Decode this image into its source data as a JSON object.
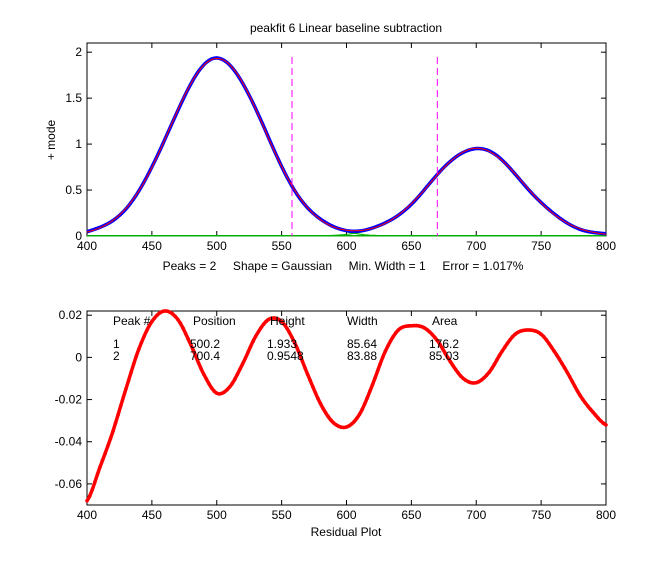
{
  "chart_data": [
    {
      "type": "line",
      "title": "peakfit 6   Linear baseline subtraction",
      "xlabel": "",
      "ylabel": "+ mode",
      "xlim": [
        400,
        800
      ],
      "ylim": [
        0,
        2.1
      ],
      "xticks": [
        "400",
        "450",
        "500",
        "550",
        "600",
        "650",
        "700",
        "750",
        "800"
      ],
      "yticks": [
        "0",
        "0.5",
        "1",
        "1.5",
        "2"
      ],
      "peaks": [
        {
          "position": 500.2,
          "height": 1.933,
          "width": 85.64
        },
        {
          "position": 700.4,
          "height": 0.9548,
          "width": 83.88
        }
      ],
      "markers_x": [
        558,
        670
      ],
      "annotation": "Peaks = 2     Shape = Gaussian     Min. Width = 1     Error = 1.017%",
      "colors": {
        "data": "#0000ff",
        "fit": "#ff0000",
        "components": "#00b000",
        "markers": "#ff00ff"
      }
    },
    {
      "type": "scatter",
      "title": "",
      "xlabel": "Residual Plot",
      "ylabel": "",
      "xlim": [
        400,
        800
      ],
      "ylim": [
        -0.07,
        0.022
      ],
      "xticks": [
        "400",
        "450",
        "500",
        "550",
        "600",
        "650",
        "700",
        "750",
        "800"
      ],
      "yticks": [
        "0.02",
        "0",
        "-0.02",
        "-0.04",
        "-0.06"
      ],
      "series": [
        {
          "x": [
            400,
            410,
            420,
            430,
            440,
            450,
            460,
            470,
            480,
            490,
            500,
            510,
            520,
            530,
            540,
            550,
            560,
            570,
            580,
            590,
            600,
            610,
            620,
            630,
            640,
            650,
            660,
            670,
            680,
            690,
            700,
            710,
            720,
            730,
            740,
            750,
            760,
            770,
            780,
            790,
            800
          ],
          "values": [
            -0.068,
            -0.052,
            -0.035,
            -0.015,
            0.004,
            0.017,
            0.022,
            0.018,
            0.006,
            -0.008,
            -0.017,
            -0.014,
            -0.003,
            0.01,
            0.018,
            0.017,
            0.007,
            -0.008,
            -0.022,
            -0.031,
            -0.033,
            -0.027,
            -0.013,
            0.003,
            0.013,
            0.015,
            0.014,
            0.008,
            -0.002,
            -0.01,
            -0.012,
            -0.007,
            0.003,
            0.011,
            0.013,
            0.011,
            0.003,
            -0.007,
            -0.018,
            -0.026,
            -0.032
          ]
        }
      ],
      "color": "#ff0000"
    }
  ],
  "table": {
    "headers": [
      "Peak #",
      "Position",
      "Height",
      "Width",
      "Area"
    ],
    "rows": [
      [
        "1",
        "500.2",
        "1.933",
        "85.64",
        "176.2"
      ],
      [
        "2",
        "700.4",
        "0.9548",
        "83.88",
        "85.03"
      ]
    ]
  }
}
